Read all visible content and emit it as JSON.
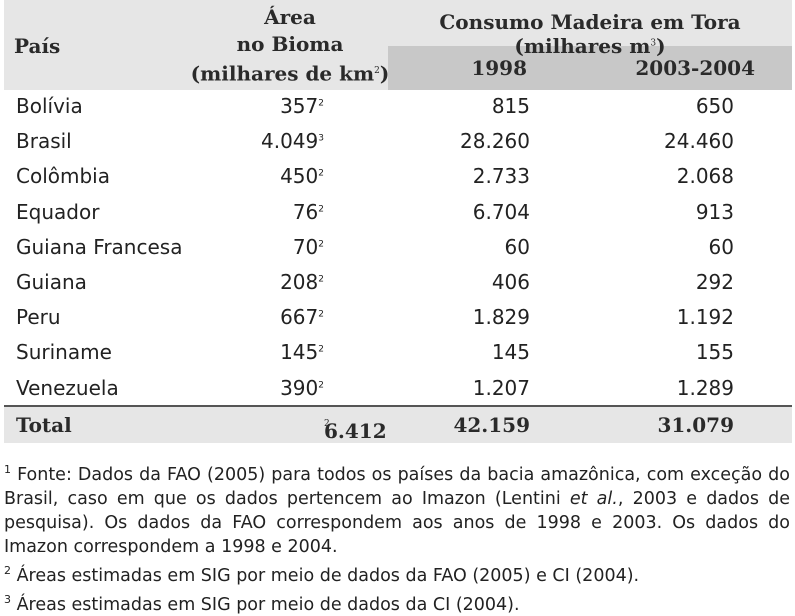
{
  "header": {
    "pais": "País",
    "area_line1": "Área",
    "area_line2": "no Bioma",
    "area_line3": "(milhares de km",
    "area_sup": "2",
    "area_close": ")",
    "consumo": "Consumo Madeira em Tora (milhares m",
    "consumo_sup": "3",
    "consumo_close": ")",
    "year1": "1998",
    "year2": "2003-2004"
  },
  "rows": [
    {
      "pais": "Bolívia",
      "area": "357",
      "sup": "2",
      "y1998": "815",
      "y2003": "650"
    },
    {
      "pais": "Brasil",
      "area": "4.049",
      "sup": "3",
      "y1998": "28.260",
      "y2003": "24.460"
    },
    {
      "pais": "Colômbia",
      "area": "450",
      "sup": "2",
      "y1998": "2.733",
      "y2003": "2.068"
    },
    {
      "pais": "Equador",
      "area": "76",
      "sup": "2",
      "y1998": "6.704",
      "y2003": "913"
    },
    {
      "pais": "Guiana Francesa",
      "area": "70",
      "sup": "2",
      "y1998": "60",
      "y2003": "60"
    },
    {
      "pais": "Guiana",
      "area": "208",
      "sup": "2",
      "y1998": "406",
      "y2003": "292"
    },
    {
      "pais": "Peru",
      "area": "667",
      "sup": "2",
      "y1998": "1.829",
      "y2003": "1.192"
    },
    {
      "pais": "Suriname",
      "area": "145",
      "sup": "2",
      "y1998": "145",
      "y2003": "155"
    },
    {
      "pais": "Venezuela",
      "area": "390",
      "sup": "2",
      "y1998": "1.207",
      "y2003": "1.289"
    }
  ],
  "total": {
    "label": "Total",
    "area": "6.412",
    "sup": "2",
    "y1998": "42.159",
    "y2003": "31.079"
  },
  "notes": {
    "n1_mark": "1",
    "n1_a": "Fonte: Dados da FAO (2005) para todos os países da bacia amazônica, com exceção do Brasil, caso em que os dados pertencem ao Imazon (Lentini ",
    "n1_italic": "et al.",
    "n1_b": ", 2003 e dados de pesquisa). Os dados da FAO correspondem aos anos de 1998 e 2003. Os dados do Imazon correspondem a 1998 e 2004.",
    "n2_mark": "2",
    "n2": "Áreas estimadas em SIG por meio de dados da FAO (2005) e CI (2004).",
    "n3_mark": "3",
    "n3": "Áreas estimadas em SIG por meio de dados da CI (2004)."
  }
}
